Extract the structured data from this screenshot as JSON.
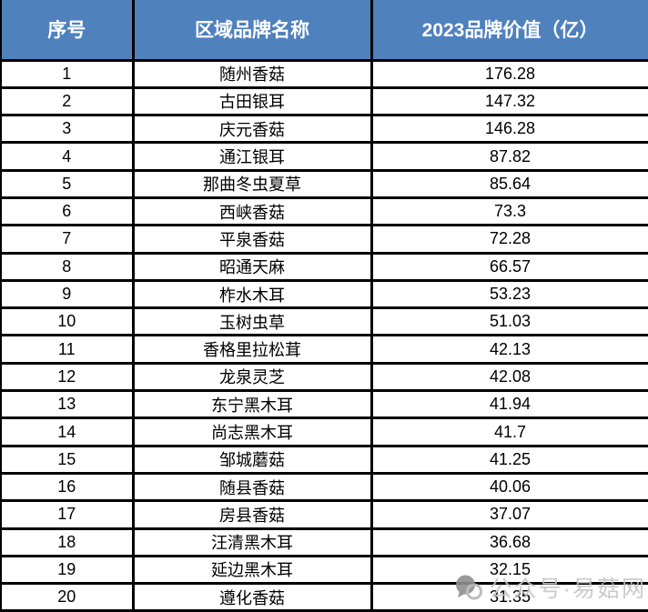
{
  "chart_data": {
    "type": "table",
    "title": "",
    "columns": [
      "序号",
      "区域品牌名称",
      "2023品牌价值（亿）"
    ],
    "rows": [
      [
        1,
        "随州香菇",
        "176.28"
      ],
      [
        2,
        "古田银耳",
        "147.32"
      ],
      [
        3,
        "庆元香菇",
        "146.28"
      ],
      [
        4,
        "通江银耳",
        "87.82"
      ],
      [
        5,
        "那曲冬虫夏草",
        "85.64"
      ],
      [
        6,
        "西峡香菇",
        "73.3"
      ],
      [
        7,
        "平泉香菇",
        "72.28"
      ],
      [
        8,
        "昭通天麻",
        "66.57"
      ],
      [
        9,
        "柞水木耳",
        "53.23"
      ],
      [
        10,
        "玉树虫草",
        "51.03"
      ],
      [
        11,
        "香格里拉松茸",
        "42.13"
      ],
      [
        12,
        "龙泉灵芝",
        "42.08"
      ],
      [
        13,
        "东宁黑木耳",
        "41.94"
      ],
      [
        14,
        "尚志黑木耳",
        "41.7"
      ],
      [
        15,
        "邹城蘑菇",
        "41.25"
      ],
      [
        16,
        "随县香菇",
        "40.06"
      ],
      [
        17,
        "房县香菇",
        "37.07"
      ],
      [
        18,
        "汪清黑木耳",
        "36.68"
      ],
      [
        19,
        "延边黑木耳",
        "32.15"
      ],
      [
        20,
        "遵化香菇",
        "31.35"
      ]
    ]
  },
  "watermark": {
    "text": "公众号·易菇网",
    "icon": "chat-bubbles-icon"
  },
  "colors": {
    "header_bg": "#4F81BD",
    "header_text": "#FFFFFF",
    "border": "#000000",
    "row_bg": "#FFFFFF",
    "body_text": "#000000",
    "watermark": "#C6C6C6"
  }
}
